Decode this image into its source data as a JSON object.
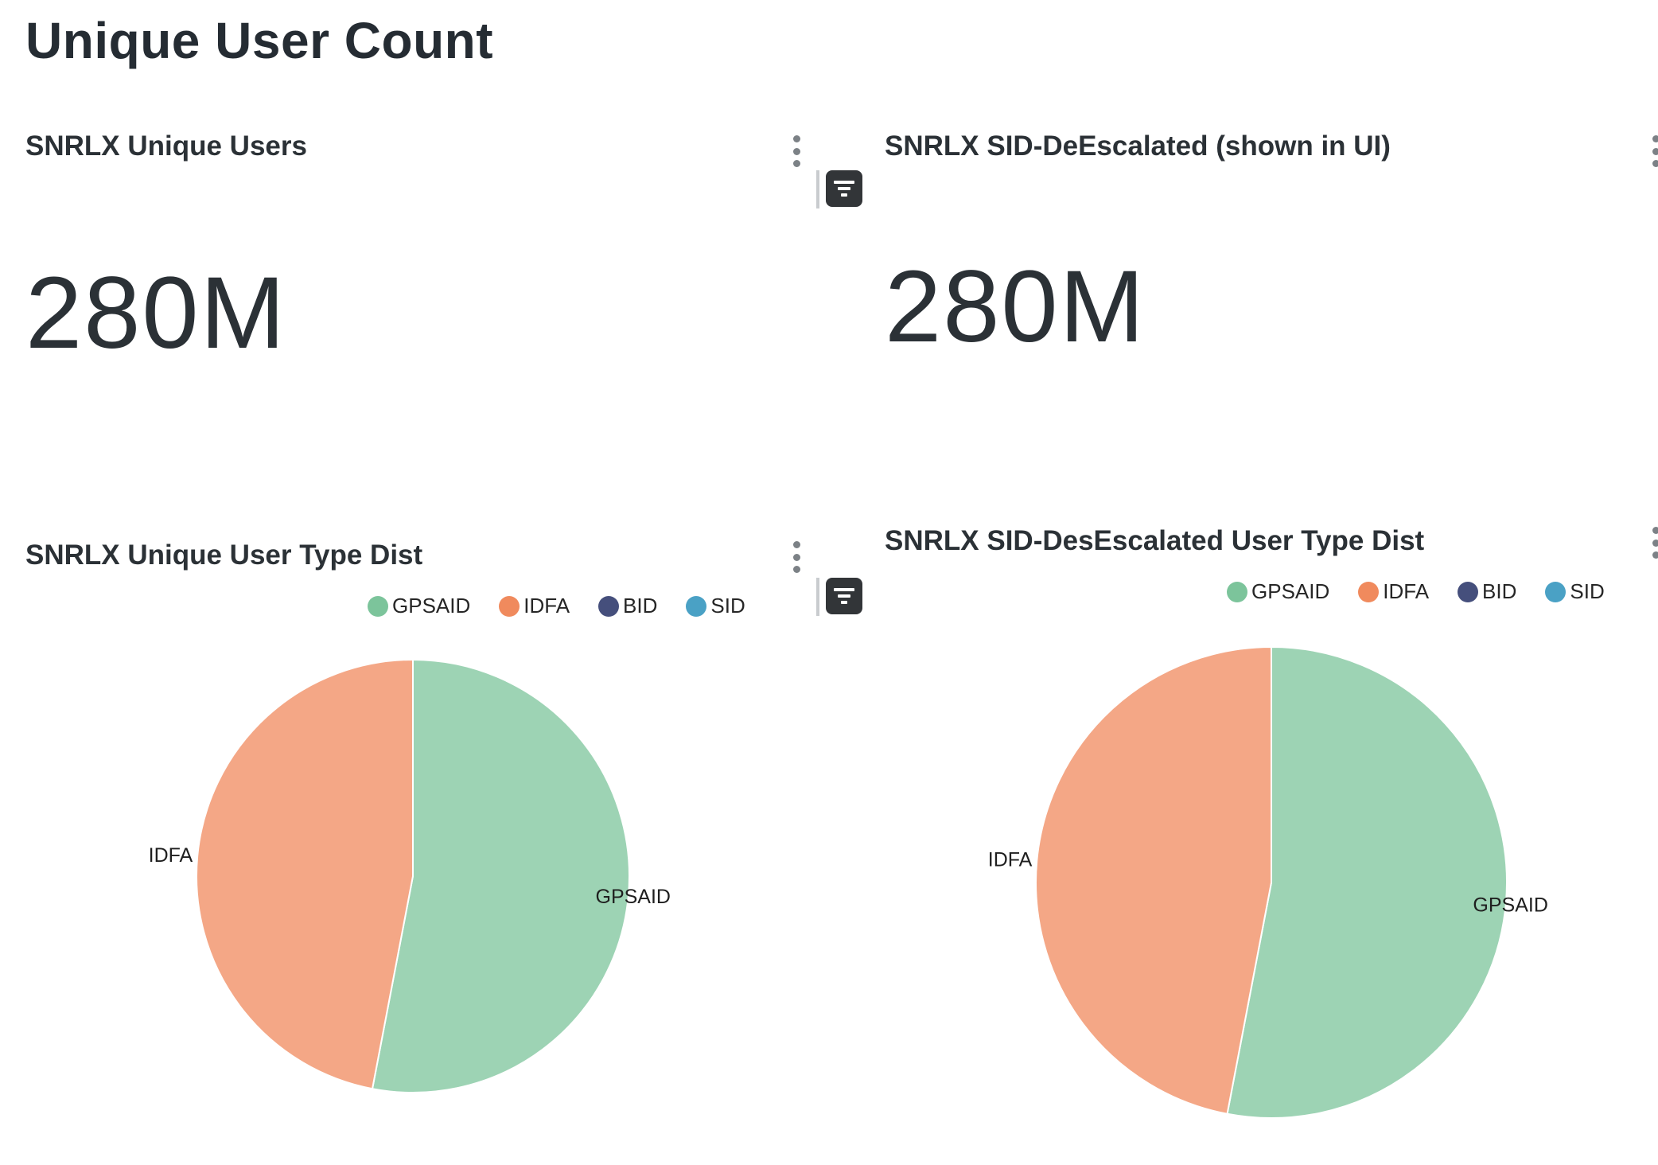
{
  "page": {
    "title": "Unique User Count"
  },
  "panels": {
    "unique_users": {
      "title": "SNRLX Unique Users",
      "value": "280M"
    },
    "sid_descalated": {
      "title": "SNRLX SID-DeEscalated (shown in UI)",
      "value": "280M"
    }
  },
  "colors": {
    "GPSAID": "#7cc49b",
    "IDFA": "#f08a5d",
    "BID": "#454f7c",
    "SID": "#4aa1c5"
  },
  "chart_data": [
    {
      "type": "pie",
      "title": "SNRLX Unique User Type Dist",
      "legend": [
        "GPSAID",
        "IDFA",
        "BID",
        "SID"
      ],
      "legend_placement": "top-right",
      "labels": [
        "GPSAID",
        "IDFA"
      ],
      "values": [
        53.0,
        47.0
      ]
    },
    {
      "type": "pie",
      "title": "SNRLX SID-DesEscalated User Type Dist",
      "legend": [
        "GPSAID",
        "IDFA",
        "BID",
        "SID"
      ],
      "legend_placement": "top-right",
      "labels": [
        "GPSAID",
        "IDFA"
      ],
      "values": [
        53.0,
        47.0
      ]
    }
  ]
}
